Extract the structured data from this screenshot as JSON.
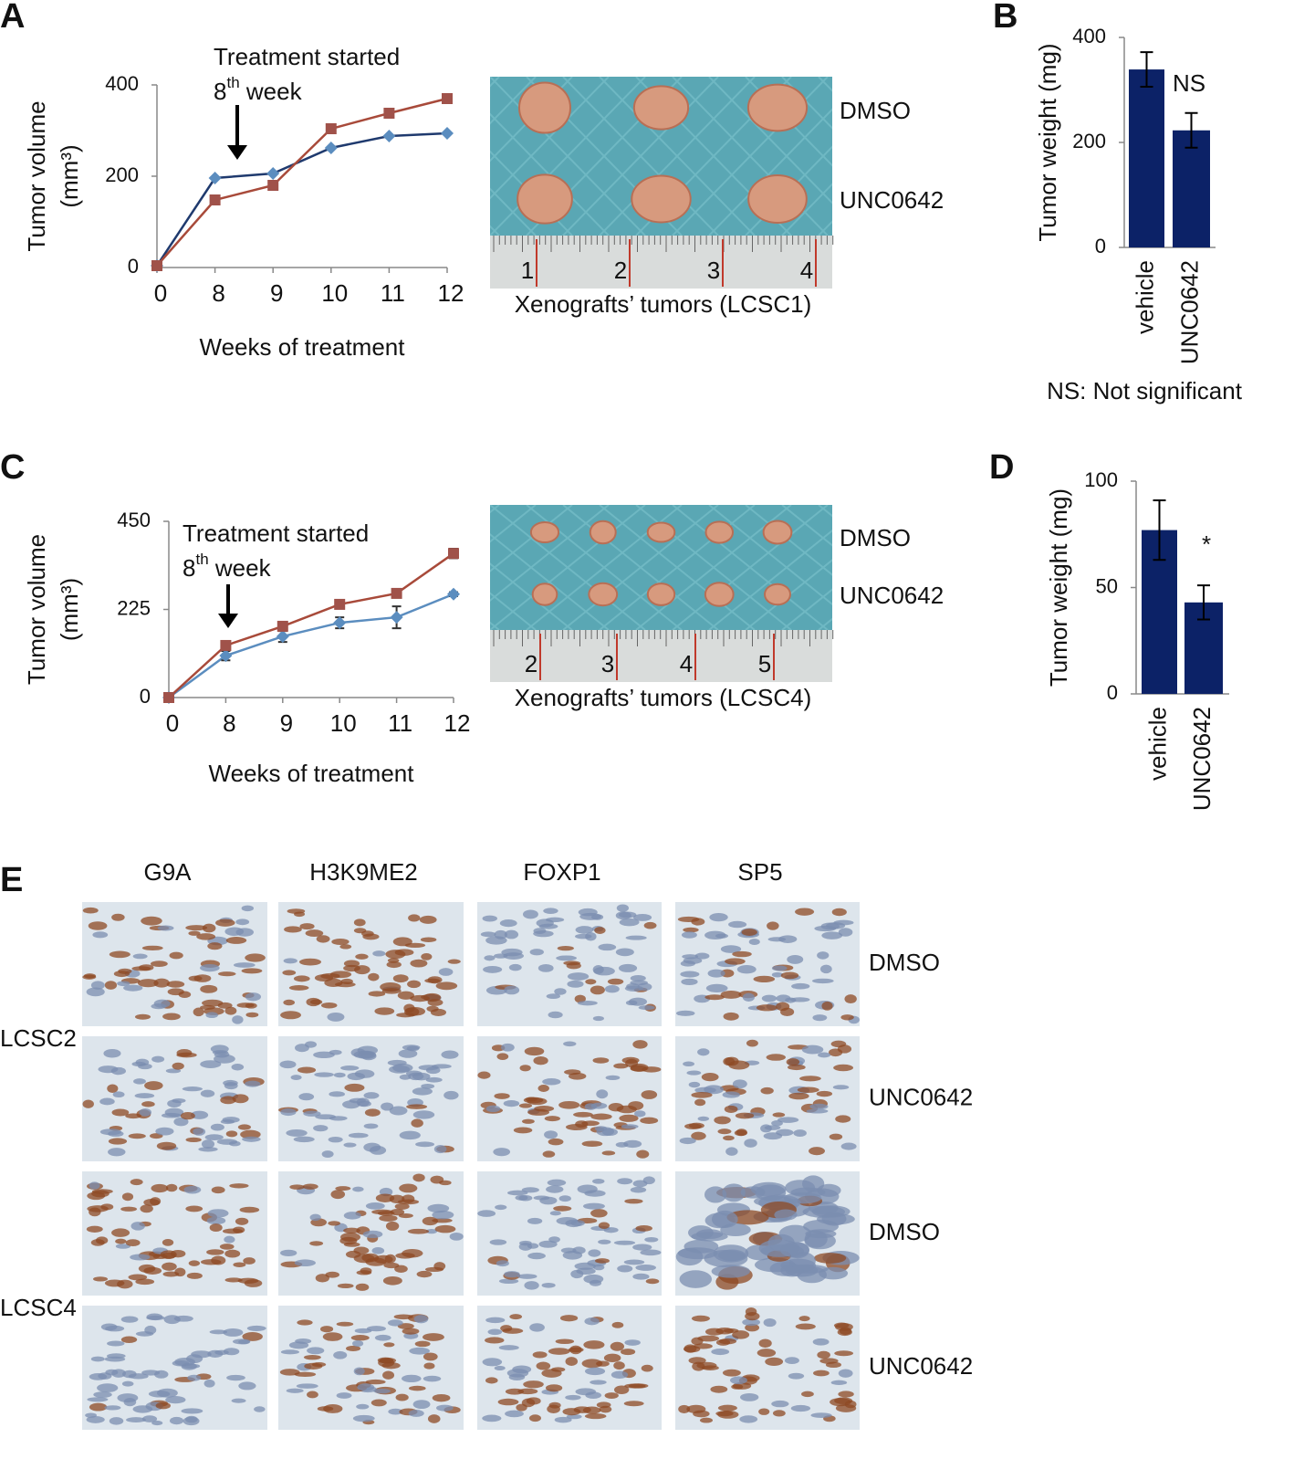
{
  "panel_labels": [
    "A",
    "B",
    "C",
    "D",
    "E"
  ],
  "chart_data": [
    {
      "type": "line",
      "y_label": [
        "Tumor volume",
        "(mm³)"
      ],
      "x_label": "Weeks of treatment",
      "annotation": {
        "line1": "Treatment started",
        "line2": [
          "8",
          "th",
          " week"
        ]
      },
      "categories": [
        "0",
        "8",
        "9",
        "10",
        "11",
        "12"
      ],
      "series": [
        {
          "color": "#1f3a6e",
          "values": [
            4,
            196,
            206,
            262,
            288,
            294
          ]
        },
        {
          "color": "#a84a3a",
          "values": [
            4,
            148,
            180,
            304,
            338,
            370
          ]
        }
      ],
      "ylim": [
        0,
        400
      ],
      "yticks": [
        0,
        200,
        400
      ]
    },
    {
      "type": "bar",
      "y_label": "Tumor weight (mg)",
      "categories": [
        "vehicle",
        "UNC0642"
      ],
      "values": [
        339,
        223
      ],
      "errors": [
        33,
        33
      ],
      "color": "#0c2267",
      "ylim": [
        0,
        400
      ],
      "yticks": [
        0,
        200,
        400
      ],
      "annotation": "NS",
      "note": "NS: Not significant"
    },
    {
      "type": "line",
      "y_label": [
        "Tumor volume",
        "(mm³)"
      ],
      "x_label": "Weeks of treatment",
      "annotation": {
        "line1": "Treatment started",
        "line2": [
          "8",
          "th",
          " week"
        ]
      },
      "categories": [
        "0",
        "8",
        "9",
        "10",
        "11",
        "12"
      ],
      "series": [
        {
          "color": "#5b8dbf",
          "values": [
            0,
            107,
            156,
            191,
            205,
            264
          ],
          "errors": [
            0,
            12,
            14,
            14,
            28,
            5
          ]
        },
        {
          "color": "#a84a3a",
          "values": [
            0,
            133,
            182,
            238,
            266,
            368
          ],
          "errors": [
            0,
            5,
            5,
            7,
            8,
            12
          ]
        }
      ],
      "ylim": [
        0,
        450
      ],
      "yticks": [
        0,
        225,
        450
      ]
    },
    {
      "type": "bar",
      "y_label": "Tumor weight (mg)",
      "categories": [
        "vehicle",
        "UNC0642"
      ],
      "values": [
        77,
        43
      ],
      "errors": [
        14,
        8
      ],
      "color": "#0c2267",
      "ylim": [
        0,
        100
      ],
      "yticks": [
        0,
        50,
        100
      ],
      "annotation": "*"
    }
  ],
  "photos": [
    {
      "labels": [
        "DMSO",
        "UNC0642"
      ],
      "ruler": [
        "1",
        "2",
        "3",
        "4"
      ],
      "caption": "Xenografts’ tumors (LCSC1)"
    },
    {
      "labels": [
        "DMSO",
        "UNC0642"
      ],
      "ruler": [
        "2",
        "3",
        "4",
        "5"
      ],
      "caption": "Xenografts’ tumors (LCSC4)"
    }
  ],
  "ihc": {
    "columns": [
      "G9A",
      "H3K9ME2",
      "FOXP1",
      "SP5"
    ],
    "groups": [
      {
        "name": "LCSC2",
        "rows": [
          "DMSO",
          "UNC0642"
        ]
      },
      {
        "name": "LCSC4",
        "rows": [
          "DMSO",
          "UNC0642"
        ]
      }
    ]
  }
}
